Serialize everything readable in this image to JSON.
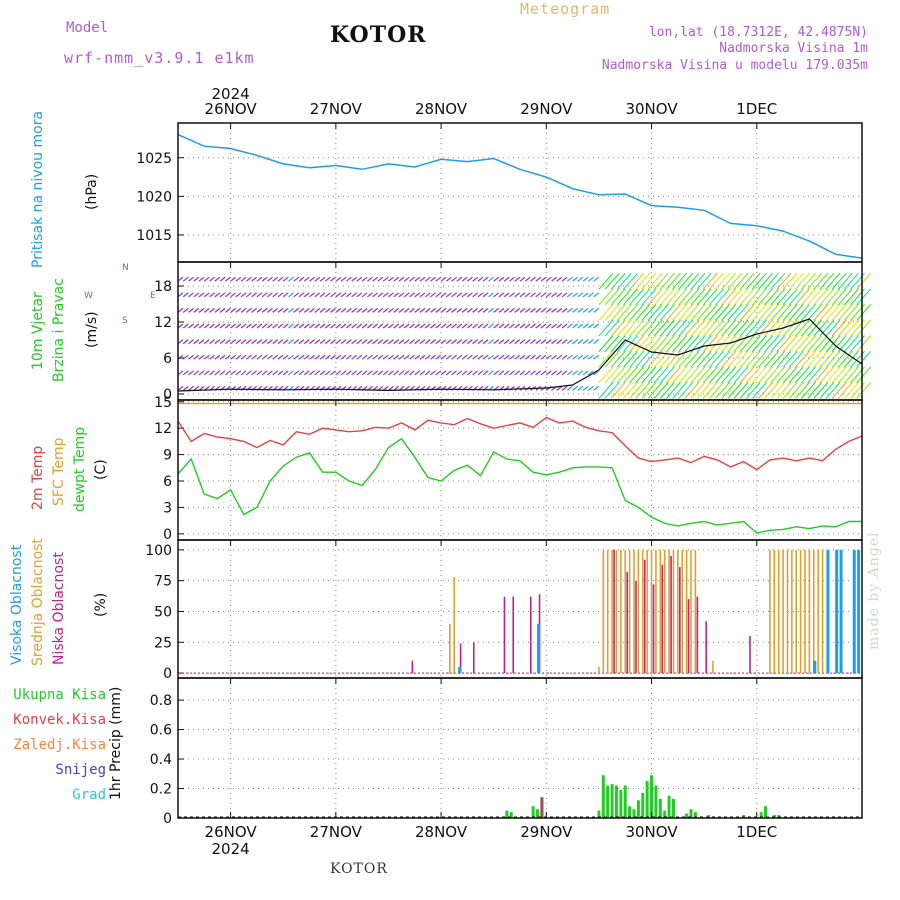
{
  "header": {
    "model_label": "Model",
    "model_name": "wrf-nmm_v3.9.1  e1km",
    "title": "KOTOR",
    "subtitle": "Meteogram",
    "lonlat": "lon,lat (18.7312E, 42.4875N)",
    "elev": "Nadmorska Visina 1m",
    "model_elev": "Nadmorska Visina u modelu 179.035m",
    "footer_title": "KOTOR",
    "made_by": "made by Angel"
  },
  "time_axis": {
    "year_top": "2024",
    "year_bottom": "2024",
    "day_labels": [
      "26NOV",
      "27NOV",
      "28NOV",
      "29NOV",
      "30NOV",
      "1DEC"
    ]
  },
  "panel_labels": {
    "pressure": [
      "Pritisak na nivou mora",
      "(hPa)"
    ],
    "wind": [
      "10m Vjetar",
      "Brzina i Pravac",
      "(m/s)"
    ],
    "wind_rose": [
      "N",
      "S",
      "W",
      "E"
    ],
    "temp": [
      "2m Temp",
      "SFC Temp",
      "dewpt Temp",
      "(C)"
    ],
    "cloud": [
      "Visoka Oblacnost",
      "Srednja Oblacnost",
      "Niska Oblacnost",
      "(%)"
    ],
    "precip_legend": [
      "Ukupna Kisa",
      "Konvek.Kisa",
      "Zaledj.Kisa",
      "Snijeg",
      "Grad"
    ],
    "precip_axis": "1hr Precip (mm)"
  },
  "colors": {
    "pressure": "#1e9ee6",
    "t2m": "#e84040",
    "sfc": "#e0a030",
    "dewpt": "#22cc22",
    "high_cloud": "#1e9ee6",
    "mid_cloud": "#e0a030",
    "low_cloud": "#c0208a",
    "rain": "#22cc22",
    "convective": "#e84040",
    "freezing": "#ff8040",
    "snow": "#4040e0",
    "hail": "#22cccc"
  },
  "chart_data": [
    {
      "type": "line",
      "panel": "pressure",
      "ylabel": "(hPa)",
      "yticks": [
        1015,
        1020,
        1025
      ],
      "ylim": [
        1011.5,
        1029.5
      ],
      "x_hours_from_26NOV00": [
        -12,
        -6,
        0,
        6,
        12,
        18,
        24,
        30,
        36,
        42,
        48,
        54,
        60,
        66,
        72,
        78,
        84,
        90,
        96,
        102,
        108,
        114,
        120,
        126,
        132,
        138,
        144
      ],
      "values": [
        1028,
        1026.5,
        1026.2,
        1025.3,
        1024.2,
        1023.7,
        1024.0,
        1023.5,
        1024.2,
        1023.8,
        1024.8,
        1024.5,
        1024.9,
        1023.5,
        1022.5,
        1021.0,
        1020.2,
        1020.3,
        1018.8,
        1018.6,
        1018.2,
        1016.5,
        1016.2,
        1015.5,
        1014.2,
        1012.5,
        1012.0
      ]
    },
    {
      "type": "line",
      "panel": "wind",
      "ylabel": "(m/s)",
      "yticks": [
        0,
        6,
        12,
        18
      ],
      "ylim": [
        -1,
        22
      ],
      "series": [
        {
          "name": "speed",
          "x_hours_from_26NOV00": [
            -12,
            0,
            12,
            24,
            36,
            48,
            60,
            72,
            78,
            84,
            90,
            96,
            102,
            108,
            114,
            120,
            126,
            132,
            138,
            144
          ],
          "values": [
            0.5,
            0.8,
            0.7,
            0.8,
            0.6,
            0.8,
            0.7,
            1.0,
            1.5,
            4.0,
            9.0,
            7.0,
            6.5,
            8.0,
            8.5,
            10.0,
            11.0,
            12.5,
            8.0,
            5.0
          ]
        }
      ]
    },
    {
      "type": "line",
      "panel": "temperature",
      "ylabel": "(C)",
      "yticks": [
        0,
        3,
        6,
        9,
        12,
        15
      ],
      "ylim": [
        -0.7,
        15.2
      ],
      "series": [
        {
          "name": "2m Temp",
          "x_hours_from_26NOV00": [
            -12,
            -9,
            -6,
            -3,
            0,
            3,
            6,
            9,
            12,
            15,
            18,
            21,
            24,
            27,
            30,
            33,
            36,
            39,
            42,
            45,
            48,
            51,
            54,
            57,
            60,
            63,
            66,
            69,
            72,
            75,
            78,
            81,
            84,
            87,
            90,
            93,
            96,
            99,
            102,
            105,
            108,
            111,
            114,
            117,
            120,
            123,
            126,
            129,
            132,
            135,
            138,
            141,
            144
          ],
          "values": [
            12.8,
            10.5,
            11.4,
            11.0,
            10.8,
            10.5,
            9.8,
            10.6,
            10.1,
            11.6,
            11.3,
            12.0,
            11.8,
            11.6,
            11.7,
            12.1,
            12.0,
            12.6,
            11.8,
            12.9,
            12.6,
            12.4,
            13.1,
            12.5,
            12.0,
            12.3,
            12.6,
            12.1,
            13.2,
            12.6,
            12.8,
            12.1,
            11.7,
            11.5,
            10.0,
            8.6,
            8.2,
            8.4,
            8.6,
            8.1,
            8.8,
            8.4,
            7.6,
            8.2,
            7.3,
            8.4,
            8.6,
            8.3,
            8.6,
            8.3,
            9.6,
            10.5,
            11.1
          ]
        },
        {
          "name": "SFC Temp",
          "x_hours_from_26NOV00": [
            -12,
            144
          ],
          "values": [
            14.8,
            14.8
          ]
        },
        {
          "name": "dewpt Temp",
          "x_hours_from_26NOV00": [
            -12,
            -9,
            -6,
            -3,
            0,
            3,
            6,
            9,
            12,
            15,
            18,
            21,
            24,
            27,
            30,
            33,
            36,
            39,
            42,
            45,
            48,
            51,
            54,
            57,
            60,
            63,
            66,
            69,
            72,
            75,
            78,
            81,
            84,
            87,
            90,
            93,
            96,
            99,
            102,
            105,
            108,
            111,
            114,
            117,
            120,
            123,
            126,
            129,
            132,
            135,
            138,
            141,
            144
          ],
          "values": [
            6.8,
            8.5,
            4.5,
            4.0,
            5.0,
            2.2,
            3.0,
            6.0,
            7.7,
            8.7,
            9.2,
            7.0,
            7.0,
            6.0,
            5.5,
            7.3,
            9.8,
            10.8,
            8.7,
            6.4,
            6.0,
            7.2,
            7.8,
            6.6,
            9.3,
            8.5,
            8.3,
            7.0,
            6.7,
            7.0,
            7.5,
            7.6,
            7.6,
            7.5,
            3.8,
            3.0,
            1.9,
            1.2,
            0.9,
            1.2,
            1.4,
            1.0,
            1.2,
            1.4,
            0.1,
            0.4,
            0.5,
            0.8,
            0.6,
            0.9,
            0.8,
            1.4,
            1.4
          ]
        }
      ]
    },
    {
      "type": "bar",
      "panel": "cloud",
      "ylabel": "(%)",
      "yticks": [
        0,
        25,
        50,
        75,
        100
      ],
      "ylim": [
        -4,
        108
      ],
      "series": [
        {
          "name": "Srednja Oblacnost",
          "x_hours_from_26NOV00": [
            50,
            51,
            84,
            85,
            86,
            87,
            88,
            89,
            90,
            91,
            92,
            93,
            94,
            95,
            96,
            97,
            98,
            99,
            100,
            101,
            102,
            103,
            104,
            105,
            106,
            110,
            123,
            124,
            125,
            126,
            127,
            128,
            129,
            130,
            131,
            132,
            133,
            134,
            135
          ],
          "values": [
            40,
            78,
            5,
            100,
            100,
            100,
            100,
            100,
            100,
            100,
            100,
            100,
            100,
            100,
            100,
            100,
            100,
            100,
            100,
            100,
            100,
            100,
            100,
            100,
            100,
            10,
            100,
            100,
            100,
            100,
            100,
            100,
            100,
            100,
            100,
            100,
            100,
            100,
            100
          ]
        },
        {
          "name": "Niska Oblacnost",
          "x_hours_from_26NOV00": [
            41,
            52,
            55,
            62,
            64,
            68,
            70,
            87,
            90,
            92,
            94,
            96,
            98,
            100,
            102,
            104,
            106,
            108,
            118
          ],
          "values": [
            10,
            24,
            25,
            62,
            62,
            62,
            64,
            100,
            82,
            75,
            92,
            72,
            88,
            95,
            86,
            60,
            62,
            42,
            30
          ]
        },
        {
          "name": "Visoka Oblacnost",
          "x_hours_from_26NOV00": [
            52,
            70,
            133,
            136,
            138,
            139,
            142,
            143
          ],
          "values": [
            5,
            40,
            10,
            100,
            100,
            100,
            100,
            100
          ]
        }
      ]
    },
    {
      "type": "bar",
      "panel": "precip",
      "ylabel": "1hr Precip (mm)",
      "yticks": [
        0,
        0.2,
        0.4,
        0.6,
        0.8
      ],
      "ylim": [
        0,
        0.95
      ],
      "series": [
        {
          "name": "Ukupna Kisa",
          "x_hours_from_26NOV00": [
            63,
            64,
            69,
            70,
            71,
            84,
            85,
            86,
            87,
            88,
            89,
            90,
            91,
            92,
            93,
            94,
            95,
            96,
            97,
            98,
            99,
            100,
            101,
            104,
            105,
            106,
            109,
            117,
            121,
            122,
            124,
            125
          ],
          "values": [
            0.05,
            0.04,
            0.08,
            0.06,
            0.14,
            0.05,
            0.29,
            0.22,
            0.23,
            0.22,
            0.19,
            0.22,
            0.08,
            0.06,
            0.12,
            0.17,
            0.25,
            0.29,
            0.22,
            0.13,
            0.05,
            0.15,
            0.13,
            0.03,
            0.06,
            0.04,
            0.02,
            0.02,
            0.04,
            0.08,
            0.02,
            0.02
          ]
        },
        {
          "name": "Konvek.Kisa",
          "x_hours_from_26NOV00": [
            71
          ],
          "values": [
            0.14
          ]
        }
      ]
    }
  ]
}
